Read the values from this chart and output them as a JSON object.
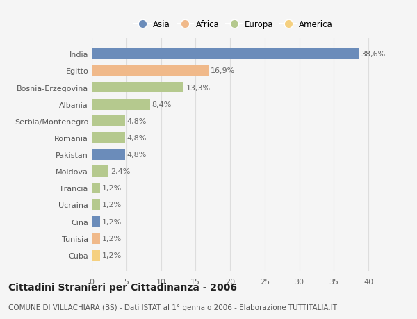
{
  "categories": [
    "India",
    "Egitto",
    "Bosnia-Erzegovina",
    "Albania",
    "Serbia/Montenegro",
    "Romania",
    "Pakistan",
    "Moldova",
    "Francia",
    "Ucraina",
    "Cina",
    "Tunisia",
    "Cuba"
  ],
  "values": [
    38.6,
    16.9,
    13.3,
    8.4,
    4.8,
    4.8,
    4.8,
    2.4,
    1.2,
    1.2,
    1.2,
    1.2,
    1.2
  ],
  "labels": [
    "38,6%",
    "16,9%",
    "13,3%",
    "8,4%",
    "4,8%",
    "4,8%",
    "4,8%",
    "2,4%",
    "1,2%",
    "1,2%",
    "1,2%",
    "1,2%",
    "1,2%"
  ],
  "colors": [
    "#6b8cba",
    "#f0b98a",
    "#b5c98e",
    "#b5c98e",
    "#b5c98e",
    "#b5c98e",
    "#6b8cba",
    "#b5c98e",
    "#b5c98e",
    "#b5c98e",
    "#6b8cba",
    "#f0b98a",
    "#f5d080"
  ],
  "legend_labels": [
    "Asia",
    "Africa",
    "Europa",
    "America"
  ],
  "legend_colors": [
    "#6b8cba",
    "#f0b98a",
    "#b5c98e",
    "#f5d080"
  ],
  "title": "Cittadini Stranieri per Cittadinanza - 2006",
  "subtitle": "COMUNE DI VILLACHIARA (BS) - Dati ISTAT al 1° gennaio 2006 - Elaborazione TUTTITALIA.IT",
  "xlim": [
    0,
    41
  ],
  "xticks": [
    0,
    5,
    10,
    15,
    20,
    25,
    30,
    35,
    40
  ],
  "background_color": "#f5f5f5",
  "grid_color": "#dddddd",
  "bar_height": 0.65,
  "label_fontsize": 8,
  "tick_fontsize": 8,
  "title_fontsize": 10,
  "subtitle_fontsize": 7.5
}
